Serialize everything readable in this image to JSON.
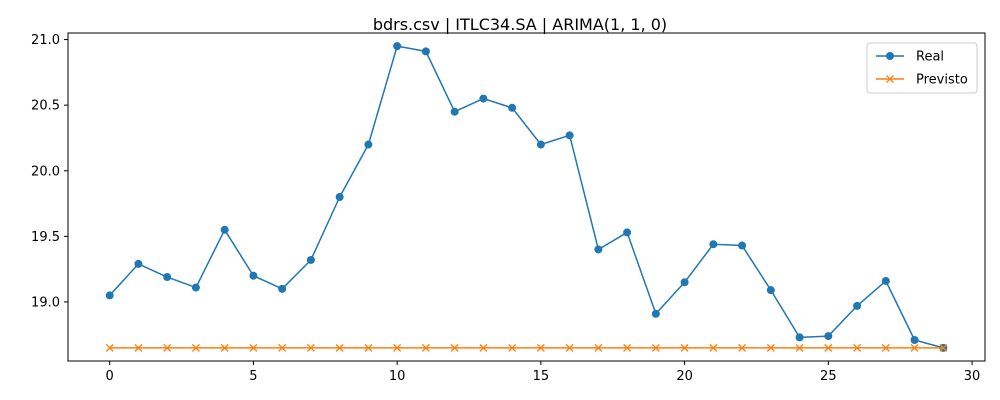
{
  "chart_data": {
    "type": "line",
    "title": "bdrs.csv | ITLC34.SA | ARIMA(1, 1, 0)",
    "xlabel": "",
    "ylabel": "",
    "xlim": [
      -1.45,
      30.45
    ],
    "ylim": [
      18.55,
      21.05
    ],
    "xticks": [
      0,
      5,
      10,
      15,
      20,
      25,
      30
    ],
    "yticks": [
      19.0,
      19.5,
      20.0,
      20.5,
      21.0
    ],
    "xtick_labels": [
      "0",
      "5",
      "10",
      "15",
      "20",
      "25",
      "30"
    ],
    "ytick_labels": [
      "19.0",
      "19.5",
      "20.0",
      "20.5",
      "21.0"
    ],
    "grid": false,
    "legend_position": "top-right",
    "x": [
      0,
      1,
      2,
      3,
      4,
      5,
      6,
      7,
      8,
      9,
      10,
      11,
      12,
      13,
      14,
      15,
      16,
      17,
      18,
      19,
      20,
      21,
      22,
      23,
      24,
      25,
      26,
      27,
      28,
      29
    ],
    "series": [
      {
        "name": "Real",
        "color": "#1f77b4",
        "marker": "circle",
        "values": [
          19.05,
          19.29,
          19.19,
          19.11,
          19.55,
          19.2,
          19.1,
          19.32,
          19.8,
          20.2,
          20.95,
          20.91,
          20.45,
          20.55,
          20.48,
          20.2,
          20.27,
          19.4,
          19.53,
          18.91,
          19.15,
          19.44,
          19.43,
          19.09,
          18.73,
          18.74,
          18.97,
          19.16,
          18.71,
          18.65
        ]
      },
      {
        "name": "Previsto",
        "color": "#ff7f0e",
        "marker": "x",
        "values": [
          18.65,
          18.65,
          18.65,
          18.65,
          18.65,
          18.65,
          18.65,
          18.65,
          18.65,
          18.65,
          18.65,
          18.65,
          18.65,
          18.65,
          18.65,
          18.65,
          18.65,
          18.65,
          18.65,
          18.65,
          18.65,
          18.65,
          18.65,
          18.65,
          18.65,
          18.65,
          18.65,
          18.65,
          18.65,
          18.65
        ]
      }
    ]
  }
}
